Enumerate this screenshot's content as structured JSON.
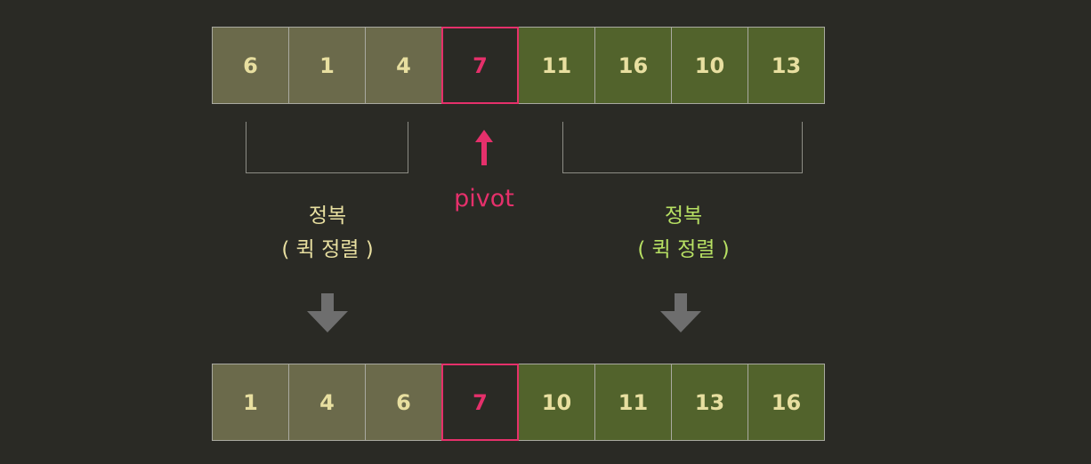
{
  "top_row": {
    "left": [
      "6",
      "1",
      "4"
    ],
    "pivot": "7",
    "right": [
      "11",
      "16",
      "10",
      "13"
    ]
  },
  "bottom_row": {
    "left": [
      "1",
      "4",
      "6"
    ],
    "pivot": "7",
    "right": [
      "10",
      "11",
      "13",
      "16"
    ]
  },
  "pivot_label": "pivot",
  "left_caption": {
    "line1": "정복",
    "line2": "( 퀵 정렬 )"
  },
  "right_caption": {
    "line1": "정복",
    "line2": "( 퀵 정렬 )"
  },
  "colors": {
    "background": "#2a2a25",
    "left_partition": "#6b6a4b",
    "right_partition": "#52632c",
    "pivot": "#e5306b",
    "left_text": "#e8dfa0",
    "right_text": "#b7e063",
    "arrow_gray": "#6e6e6e"
  }
}
